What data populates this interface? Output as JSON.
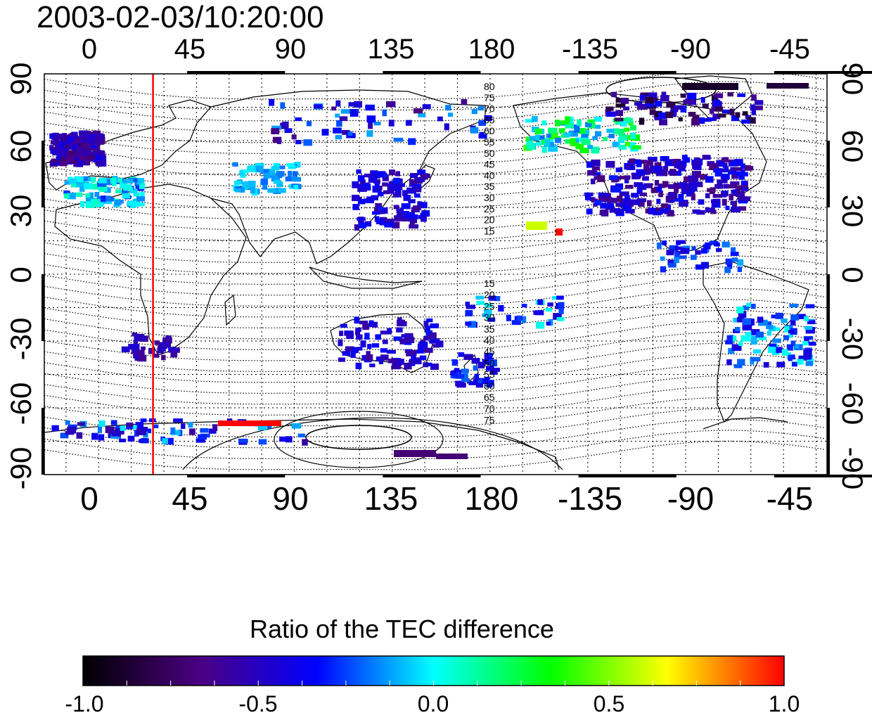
{
  "title": "2003-02-03/10:20:00",
  "lon_ticks_top": [
    "0",
    "45",
    "90",
    "135",
    "180",
    "-135",
    "-90",
    "-45"
  ],
  "lon_ticks_bottom": [
    "0",
    "45",
    "90",
    "135",
    "180",
    "-135",
    "-90",
    "-45"
  ],
  "lat_ticks_left": [
    "90",
    "60",
    "30",
    "0",
    "-30",
    "-60",
    "-90"
  ],
  "lat_ticks_right": [
    "90",
    "60",
    "30",
    "0",
    "-30",
    "-60",
    "-90"
  ],
  "contour_labels_north": [
    "80",
    "75",
    "70",
    "65",
    "60",
    "55",
    "50",
    "45",
    "40",
    "35",
    "30",
    "25",
    "20",
    "15"
  ],
  "contour_labels_south": [
    "15",
    "20",
    "25",
    "30",
    "35",
    "40",
    "45",
    "50",
    "55",
    "60",
    "65",
    "70",
    "75"
  ],
  "colorbar": {
    "title": "Ratio of the TEC difference",
    "ticks": [
      "-1.0",
      "-0.5",
      "0.0",
      "0.5",
      "1.0"
    ],
    "min": -1.0,
    "max": 1.0,
    "colors": [
      "#000000",
      "#4b0082",
      "#0000ff",
      "#00ffff",
      "#00ff00",
      "#ffff00",
      "#ff0000"
    ]
  },
  "terminator_longitude": 25,
  "map_colors": {
    "terminator": "#ff0000",
    "coastline": "#000000",
    "grid": "#000000"
  }
}
